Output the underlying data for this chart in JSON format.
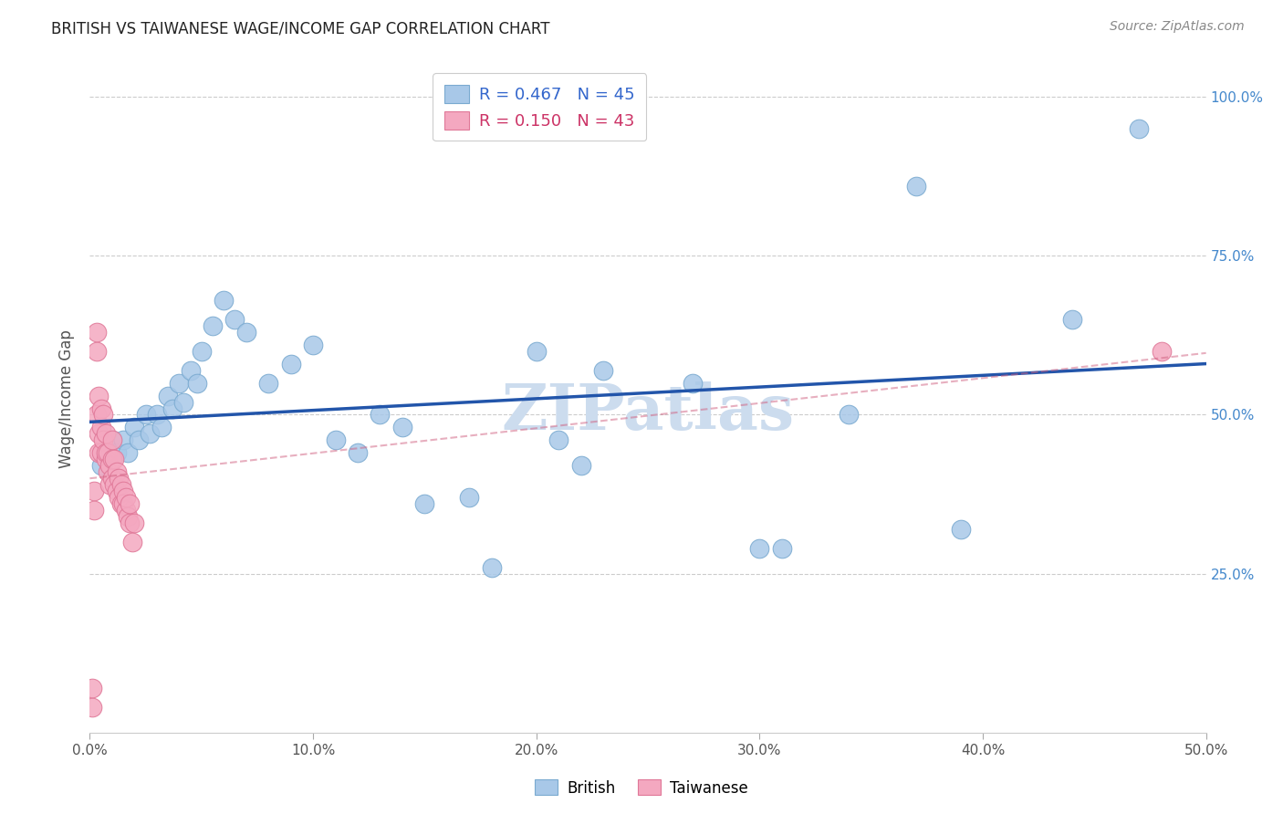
{
  "title": "BRITISH VS TAIWANESE WAGE/INCOME GAP CORRELATION CHART",
  "source": "Source: ZipAtlas.com",
  "ylabel": "Wage/Income Gap",
  "x_min": 0.0,
  "x_max": 0.5,
  "y_min": 0.0,
  "y_max": 1.05,
  "x_ticks": [
    0.0,
    0.1,
    0.2,
    0.3,
    0.4,
    0.5
  ],
  "x_tick_labels": [
    "0.0%",
    "10.0%",
    "20.0%",
    "30.0%",
    "40.0%",
    "50.0%"
  ],
  "y_ticks": [
    0.25,
    0.5,
    0.75,
    1.0
  ],
  "y_tick_labels": [
    "25.0%",
    "50.0%",
    "75.0%",
    "100.0%"
  ],
  "british_R": 0.467,
  "british_N": 45,
  "taiwanese_R": 0.15,
  "taiwanese_N": 43,
  "british_color": "#a8c8e8",
  "british_edge_color": "#7aaad0",
  "british_line_color": "#2255aa",
  "taiwanese_color": "#f4a8c0",
  "taiwanese_edge_color": "#e07898",
  "taiwanese_line_color": "#d06080",
  "watermark_color": "#ccdcee",
  "british_x": [
    0.005,
    0.007,
    0.01,
    0.012,
    0.015,
    0.017,
    0.02,
    0.022,
    0.025,
    0.027,
    0.03,
    0.032,
    0.035,
    0.037,
    0.04,
    0.042,
    0.045,
    0.048,
    0.05,
    0.055,
    0.06,
    0.065,
    0.07,
    0.08,
    0.09,
    0.1,
    0.11,
    0.12,
    0.13,
    0.14,
    0.15,
    0.17,
    0.18,
    0.2,
    0.21,
    0.22,
    0.23,
    0.27,
    0.3,
    0.31,
    0.34,
    0.37,
    0.39,
    0.44,
    0.47
  ],
  "british_y": [
    0.42,
    0.44,
    0.46,
    0.44,
    0.46,
    0.44,
    0.48,
    0.46,
    0.5,
    0.47,
    0.5,
    0.48,
    0.53,
    0.51,
    0.55,
    0.52,
    0.57,
    0.55,
    0.6,
    0.64,
    0.68,
    0.65,
    0.63,
    0.55,
    0.58,
    0.61,
    0.46,
    0.44,
    0.5,
    0.48,
    0.36,
    0.37,
    0.26,
    0.6,
    0.46,
    0.42,
    0.57,
    0.55,
    0.29,
    0.29,
    0.5,
    0.86,
    0.32,
    0.65,
    0.95
  ],
  "taiwanese_x": [
    0.001,
    0.001,
    0.002,
    0.002,
    0.003,
    0.003,
    0.003,
    0.004,
    0.004,
    0.004,
    0.005,
    0.005,
    0.005,
    0.006,
    0.006,
    0.007,
    0.007,
    0.007,
    0.008,
    0.008,
    0.009,
    0.009,
    0.01,
    0.01,
    0.01,
    0.011,
    0.011,
    0.012,
    0.012,
    0.013,
    0.013,
    0.014,
    0.014,
    0.015,
    0.015,
    0.016,
    0.016,
    0.017,
    0.018,
    0.018,
    0.019,
    0.02,
    0.48
  ],
  "taiwanese_y": [
    0.04,
    0.07,
    0.38,
    0.35,
    0.5,
    0.6,
    0.63,
    0.53,
    0.47,
    0.44,
    0.51,
    0.48,
    0.44,
    0.5,
    0.46,
    0.43,
    0.47,
    0.44,
    0.41,
    0.44,
    0.39,
    0.42,
    0.43,
    0.46,
    0.4,
    0.43,
    0.39,
    0.41,
    0.38,
    0.4,
    0.37,
    0.39,
    0.36,
    0.38,
    0.36,
    0.35,
    0.37,
    0.34,
    0.33,
    0.36,
    0.3,
    0.33,
    0.6
  ]
}
